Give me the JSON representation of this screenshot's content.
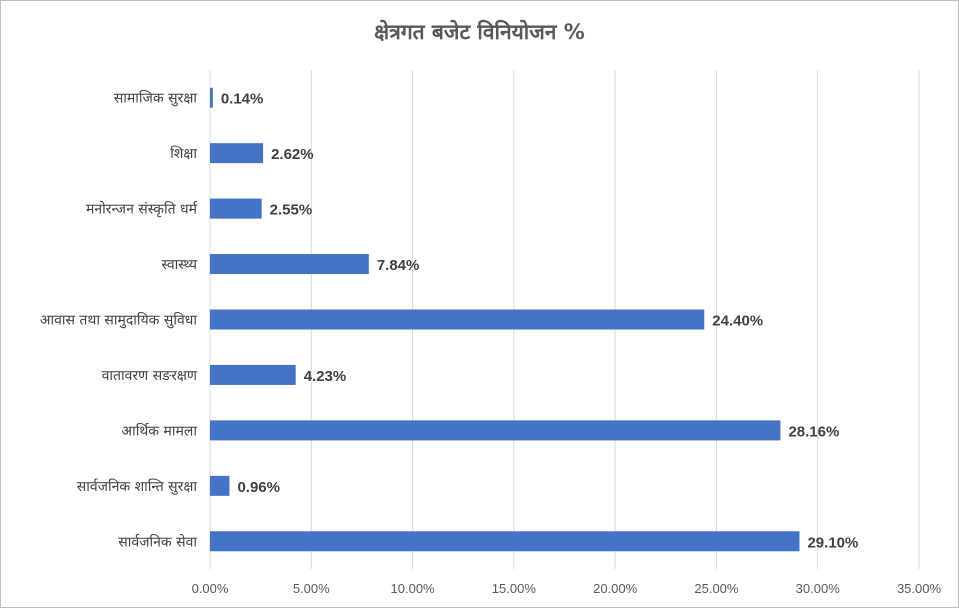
{
  "chart_data": {
    "type": "bar",
    "orientation": "horizontal",
    "title": "क्षेत्रगत बजेट विनियोजन %",
    "categories": [
      "सामाजिक सुरक्षा",
      "शिक्षा",
      "मनोरन्जन संस्कृति धर्म",
      "स्वास्थ्य",
      "आवास तथा सामुदायिक सुविधा",
      "वातावरण सङरक्षण",
      "आर्थिक मामला",
      "सार्वजनिक शान्ति सुरक्षा",
      "सार्वजनिक सेवा"
    ],
    "values": [
      0.14,
      2.62,
      2.55,
      7.84,
      24.4,
      4.23,
      28.16,
      0.96,
      29.1
    ],
    "data_labels": [
      "0.14%",
      "2.62%",
      "2.55%",
      "7.84%",
      "24.40%",
      "4.23%",
      "28.16%",
      "0.96%",
      "29.10%"
    ],
    "xlim": [
      0,
      35
    ],
    "xticks": [
      0,
      5,
      10,
      15,
      20,
      25,
      30,
      35
    ],
    "xtick_labels": [
      "0.00%",
      "5.00%",
      "10.00%",
      "15.00%",
      "20.00%",
      "25.00%",
      "30.00%",
      "35.00%"
    ],
    "grid": "vertical",
    "legend": "none",
    "bar_color": "#4472c4",
    "grid_color": "#d9d9d9"
  }
}
